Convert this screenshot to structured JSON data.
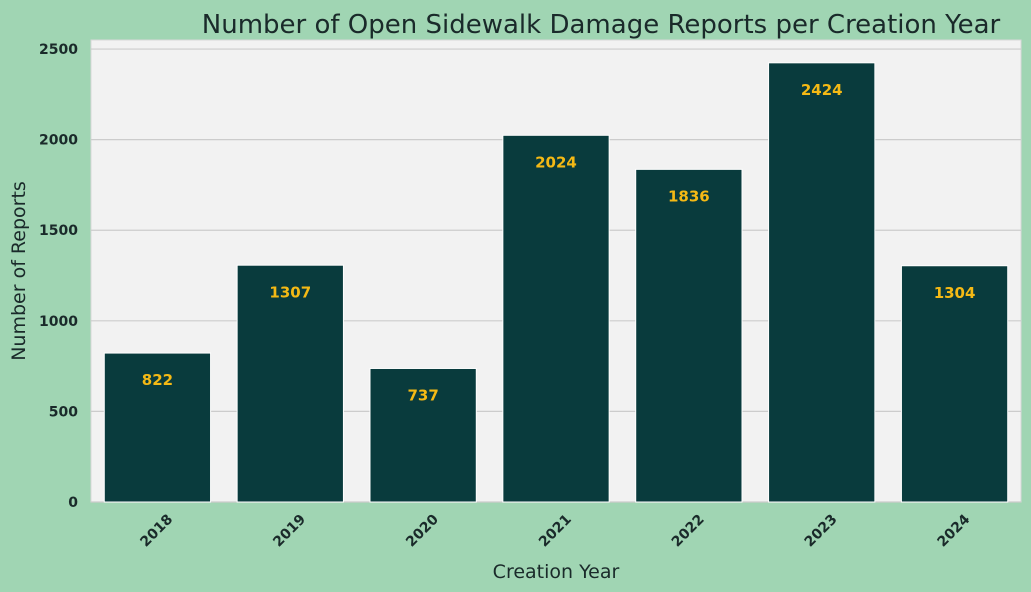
{
  "chart_data": {
    "type": "bar",
    "title": "Number of Open Sidewalk Damage Reports per Creation Year",
    "xlabel": "Creation Year",
    "ylabel": "Number of Reports",
    "categories": [
      "2018",
      "2019",
      "2020",
      "2021",
      "2022",
      "2023",
      "2024"
    ],
    "values": [
      822,
      1307,
      737,
      2024,
      1836,
      2424,
      1304
    ],
    "data_labels": [
      "822",
      "1307",
      "737",
      "2024",
      "1836",
      "2424",
      "1304"
    ],
    "yticks": [
      0,
      500,
      1000,
      1500,
      2000,
      2500
    ],
    "ytick_labels": [
      "0",
      "500",
      "1000",
      "1500",
      "2000",
      "2500"
    ],
    "ylim": [
      0,
      2550
    ],
    "grid": "horizontal",
    "colors": {
      "bar": "#093b3d",
      "data_label": "#f4b915",
      "plot_background": "#f2f2f2",
      "figure_background": "#a0d5b3",
      "grid": "#cccccc"
    }
  }
}
